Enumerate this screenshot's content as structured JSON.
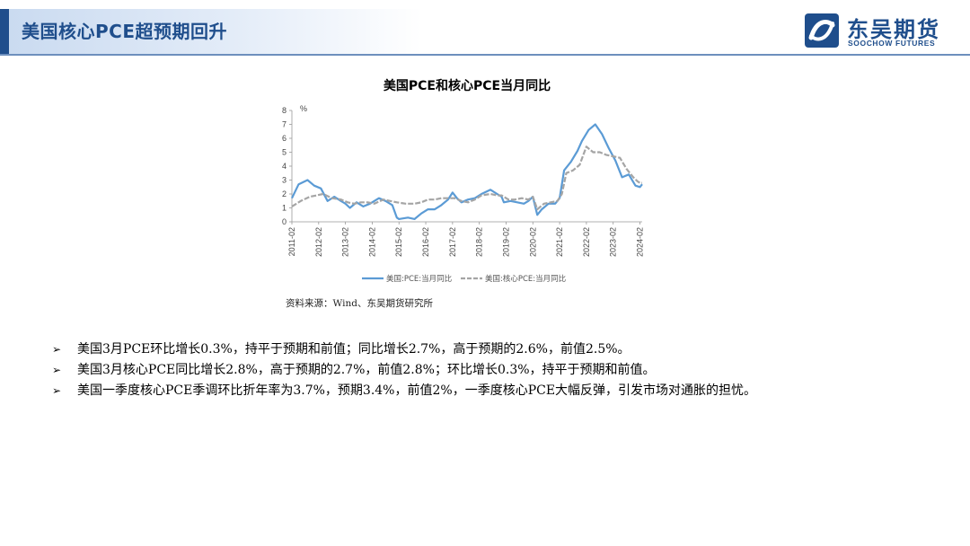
{
  "header": {
    "title": "美国核心PCE超预期回升",
    "logo_cn": "东吴期货",
    "logo_en": "SOOCHOW FUTURES"
  },
  "colors": {
    "brand": "#1f4e8c",
    "series_pce": "#5b9bd5",
    "series_core": "#a5a5a5"
  },
  "chart_data": {
    "type": "line",
    "title": "美国PCE和核心PCE当月同比",
    "ylabel": "%",
    "xlabel": "",
    "ylim": [
      0,
      8
    ],
    "yticks": [
      0,
      1,
      2,
      3,
      4,
      5,
      6,
      7,
      8
    ],
    "grid": false,
    "legend_position": "bottom",
    "x_tick_labels": [
      "2011-02",
      "2012-02",
      "2013-02",
      "2014-02",
      "2015-02",
      "2016-02",
      "2017-02",
      "2018-02",
      "2019-02",
      "2020-02",
      "2021-02",
      "2022-02",
      "2023-02",
      "2024-02"
    ],
    "x_start": "2011-02",
    "x_end": "2024-03",
    "series": [
      {
        "name": "美国:PCE:当月同比",
        "style": "solid",
        "points": [
          [
            "2011-02",
            1.7
          ],
          [
            "2011-05",
            2.7
          ],
          [
            "2011-09",
            3.0
          ],
          [
            "2011-12",
            2.6
          ],
          [
            "2012-03",
            2.4
          ],
          [
            "2012-06",
            1.5
          ],
          [
            "2012-09",
            1.8
          ],
          [
            "2012-12",
            1.5
          ],
          [
            "2013-02",
            1.3
          ],
          [
            "2013-04",
            1.0
          ],
          [
            "2013-07",
            1.4
          ],
          [
            "2013-10",
            1.1
          ],
          [
            "2014-01",
            1.3
          ],
          [
            "2014-05",
            1.7
          ],
          [
            "2014-08",
            1.5
          ],
          [
            "2014-11",
            1.2
          ],
          [
            "2015-01",
            0.3
          ],
          [
            "2015-02",
            0.2
          ],
          [
            "2015-06",
            0.3
          ],
          [
            "2015-09",
            0.2
          ],
          [
            "2015-12",
            0.6
          ],
          [
            "2016-03",
            0.9
          ],
          [
            "2016-06",
            0.9
          ],
          [
            "2016-09",
            1.2
          ],
          [
            "2016-12",
            1.6
          ],
          [
            "2017-02",
            2.1
          ],
          [
            "2017-04",
            1.7
          ],
          [
            "2017-06",
            1.4
          ],
          [
            "2017-09",
            1.6
          ],
          [
            "2017-12",
            1.7
          ],
          [
            "2018-03",
            2.0
          ],
          [
            "2018-07",
            2.3
          ],
          [
            "2018-10",
            2.0
          ],
          [
            "2018-12",
            1.8
          ],
          [
            "2019-01",
            1.4
          ],
          [
            "2019-04",
            1.5
          ],
          [
            "2019-07",
            1.4
          ],
          [
            "2019-10",
            1.3
          ],
          [
            "2019-12",
            1.5
          ],
          [
            "2020-02",
            1.8
          ],
          [
            "2020-04",
            0.5
          ],
          [
            "2020-06",
            0.9
          ],
          [
            "2020-09",
            1.3
          ],
          [
            "2020-12",
            1.3
          ],
          [
            "2021-02",
            1.7
          ],
          [
            "2021-04",
            3.7
          ],
          [
            "2021-07",
            4.3
          ],
          [
            "2021-10",
            5.1
          ],
          [
            "2021-12",
            5.8
          ],
          [
            "2022-03",
            6.6
          ],
          [
            "2022-06",
            7.0
          ],
          [
            "2022-09",
            6.3
          ],
          [
            "2022-12",
            5.3
          ],
          [
            "2023-03",
            4.4
          ],
          [
            "2023-06",
            3.2
          ],
          [
            "2023-09",
            3.4
          ],
          [
            "2023-12",
            2.6
          ],
          [
            "2024-02",
            2.5
          ],
          [
            "2024-03",
            2.7
          ]
        ]
      },
      {
        "name": "美国:核心PCE:当月同比",
        "style": "dashed",
        "points": [
          [
            "2011-02",
            1.1
          ],
          [
            "2011-06",
            1.5
          ],
          [
            "2011-10",
            1.8
          ],
          [
            "2012-01",
            1.9
          ],
          [
            "2012-04",
            2.0
          ],
          [
            "2012-08",
            1.7
          ],
          [
            "2012-12",
            1.6
          ],
          [
            "2013-03",
            1.4
          ],
          [
            "2013-06",
            1.3
          ],
          [
            "2013-09",
            1.4
          ],
          [
            "2013-12",
            1.4
          ],
          [
            "2014-03",
            1.3
          ],
          [
            "2014-07",
            1.6
          ],
          [
            "2014-10",
            1.5
          ],
          [
            "2015-01",
            1.4
          ],
          [
            "2015-05",
            1.3
          ],
          [
            "2015-09",
            1.3
          ],
          [
            "2015-12",
            1.4
          ],
          [
            "2016-03",
            1.6
          ],
          [
            "2016-06",
            1.6
          ],
          [
            "2016-09",
            1.7
          ],
          [
            "2016-12",
            1.7
          ],
          [
            "2017-03",
            1.7
          ],
          [
            "2017-06",
            1.5
          ],
          [
            "2017-09",
            1.4
          ],
          [
            "2017-12",
            1.6
          ],
          [
            "2018-03",
            1.9
          ],
          [
            "2018-07",
            2.0
          ],
          [
            "2018-10",
            1.9
          ],
          [
            "2018-12",
            1.9
          ],
          [
            "2019-03",
            1.6
          ],
          [
            "2019-06",
            1.6
          ],
          [
            "2019-09",
            1.7
          ],
          [
            "2019-12",
            1.6
          ],
          [
            "2020-02",
            1.8
          ],
          [
            "2020-04",
            0.9
          ],
          [
            "2020-07",
            1.3
          ],
          [
            "2020-10",
            1.4
          ],
          [
            "2021-01",
            1.5
          ],
          [
            "2021-03",
            2.0
          ],
          [
            "2021-05",
            3.5
          ],
          [
            "2021-08",
            3.7
          ],
          [
            "2021-11",
            4.1
          ],
          [
            "2022-02",
            5.4
          ],
          [
            "2022-05",
            5.0
          ],
          [
            "2022-08",
            5.0
          ],
          [
            "2022-11",
            4.8
          ],
          [
            "2023-02",
            4.7
          ],
          [
            "2023-05",
            4.6
          ],
          [
            "2023-08",
            3.8
          ],
          [
            "2023-11",
            3.2
          ],
          [
            "2024-01",
            2.9
          ],
          [
            "2024-02",
            2.8
          ],
          [
            "2024-03",
            2.8
          ]
        ]
      }
    ],
    "source": "资料来源：Wind、东吴期货研究所"
  },
  "bullets": [
    "美国3月PCE环比增长0.3%，持平于预期和前值；同比增长2.7%，高于预期的2.6%，前值2.5%。",
    "美国3月核心PCE同比增长2.8%，高于预期的2.7%，前值2.8%；环比增长0.3%，持平于预期和前值。",
    "美国一季度核心PCE季调环比折年率为3.7%，预期3.4%，前值2%，一季度核心PCE大幅反弹，引发市场对通胀的担忧。"
  ],
  "bullet_marker": "➢"
}
